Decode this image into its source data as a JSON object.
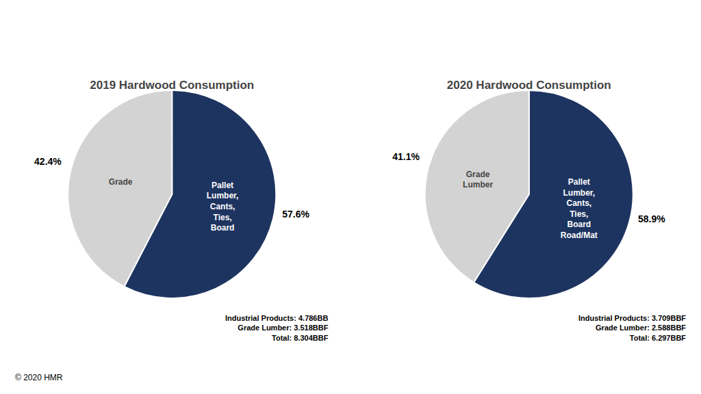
{
  "chart_data": [
    {
      "type": "pie",
      "title": "2019 Hardwood Consumption",
      "categories": [
        "Pallet\nLumber,\nCants,\nTies,\nBoard",
        "Grade"
      ],
      "values": [
        57.6,
        42.4
      ],
      "value_labels": [
        "57.6%",
        "42.4%"
      ],
      "data_labels": true,
      "colors": [
        "#1e3460",
        "#d3d3d3"
      ],
      "annotations": [
        "Industrial Products: 4.786BB\nGrade Lumber: 3.518BBF\nTotal: 8.304BBF"
      ]
    },
    {
      "type": "pie",
      "title": "2020 Hardwood Consumption",
      "categories": [
        "Pallet\nLumber,\nCants,\nTies,\nBoard\nRoad/Mat",
        "Grade\nLumber"
      ],
      "values": [
        58.9,
        41.1
      ],
      "value_labels": [
        "58.9%",
        "41.1%"
      ],
      "data_labels": true,
      "colors": [
        "#1e3460",
        "#d3d3d3"
      ],
      "annotations": [
        "Industrial Products: 3.709BBF\nGrade Lumber: 2.588BBF\nTotal: 6.297BBF"
      ]
    }
  ],
  "annotations": [
    "© 2020 HMR"
  ]
}
